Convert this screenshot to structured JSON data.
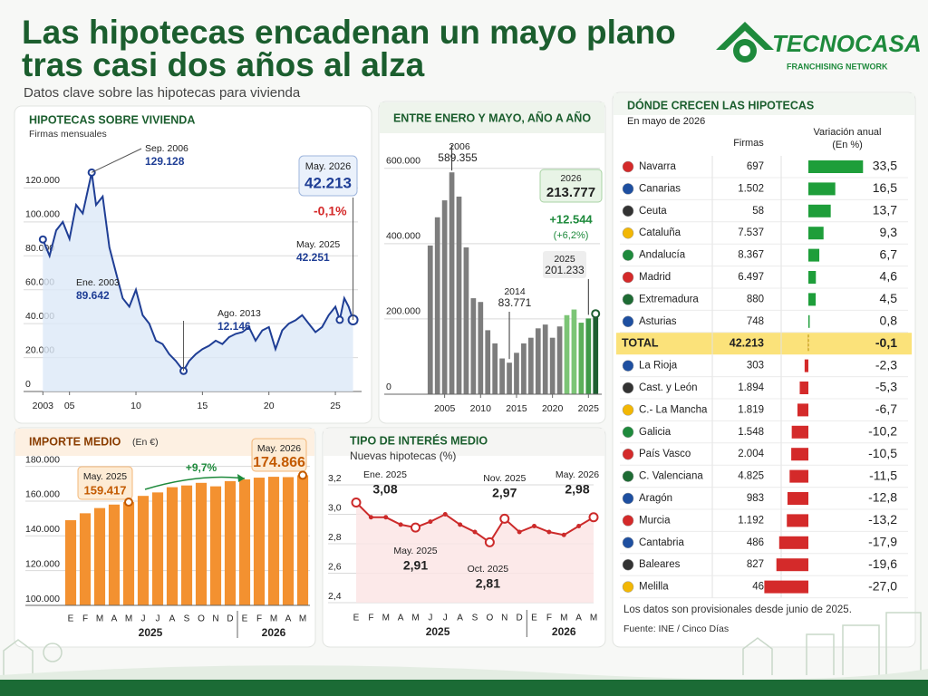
{
  "header": {
    "title": [
      "Las hipotecas encadenan un mayo plano",
      "tras casi dos años al alza"
    ],
    "subtitle": "Datos clave sobre las hipotecas para vivienda",
    "logo": "TECNOCASA",
    "logo_tagline": "FRANCHISING NETWORK"
  },
  "chart_data": [
    {
      "type": "line",
      "title": "HIPOTECAS SOBRE VIVIENDA",
      "subtitle": "Firmas mensuales",
      "color": "#1f3e95",
      "x": [
        2003.0,
        2003.5,
        2004.0,
        2004.5,
        2005.0,
        2005.5,
        2006.0,
        2006.67,
        2007.0,
        2007.5,
        2008.0,
        2008.5,
        2009.0,
        2009.5,
        2010.0,
        2010.5,
        2011.0,
        2011.5,
        2012.0,
        2012.5,
        2013.0,
        2013.58,
        2014.0,
        2014.5,
        2015.0,
        2015.5,
        2016.0,
        2016.5,
        2017.0,
        2017.5,
        2018.0,
        2018.5,
        2019.0,
        2019.5,
        2020.0,
        2020.5,
        2021.0,
        2021.5,
        2022.0,
        2022.5,
        2023.0,
        2023.5,
        2024.0,
        2024.5,
        2025.0,
        2025.33,
        2025.67,
        2026.0,
        2026.33
      ],
      "values": [
        89642,
        80000,
        95000,
        100000,
        90000,
        110000,
        105000,
        129128,
        110000,
        115000,
        85000,
        70000,
        55000,
        50000,
        60000,
        45000,
        40000,
        30000,
        28000,
        22000,
        18000,
        12146,
        18000,
        22000,
        25000,
        27000,
        30000,
        28000,
        32000,
        34000,
        35000,
        38000,
        30000,
        36000,
        38000,
        25000,
        36000,
        40000,
        42000,
        45000,
        40000,
        35000,
        38000,
        45000,
        50000,
        42251,
        55000,
        50000,
        42213
      ],
      "xlim": [
        2002.5,
        2026.7
      ],
      "ylim": [
        0,
        140000
      ],
      "xticks": [
        2003,
        {
          "value": 2005,
          "label": "05"
        },
        {
          "value": 2010,
          "label": "10"
        },
        {
          "value": 2015,
          "label": "15"
        },
        {
          "value": 2020,
          "label": "20"
        },
        {
          "value": 2025,
          "label": "25"
        }
      ],
      "yticks": [
        0,
        {
          "value": 20000,
          "label": "20.000"
        },
        {
          "value": 40000,
          "label": "40.000"
        },
        {
          "value": 60000,
          "label": "60.000"
        },
        {
          "value": 80000,
          "label": "80.000"
        },
        {
          "value": 100000,
          "label": "100.000"
        },
        {
          "value": 120000,
          "label": "120.000"
        }
      ],
      "grid": true,
      "annotations": [
        {
          "date": "Ene. 2003",
          "x": 2003.0,
          "value": 89642,
          "value_label": "89.642"
        },
        {
          "date": "Sep. 2006",
          "x": 2006.67,
          "value": 129128,
          "value_label": "129.128"
        },
        {
          "date": "Ago. 2013",
          "x": 2013.58,
          "value": 12146,
          "value_label": "12.146"
        },
        {
          "date": "May. 2025",
          "x": 2025.33,
          "value": 42251,
          "value_label": "42.251"
        },
        {
          "date": "May. 2026",
          "x": 2026.33,
          "value": 42213,
          "value_label": "42.213"
        }
      ],
      "note": "-0,1%"
    },
    {
      "type": "bar",
      "title": "ENTRE ENERO Y MAYO, AÑO A AÑO",
      "x": [
        2003,
        2004,
        2005,
        2006,
        2007,
        2008,
        2009,
        2010,
        2011,
        2012,
        2013,
        2014,
        2015,
        2016,
        2017,
        2018,
        2019,
        2020,
        2021,
        2022,
        2023,
        2024,
        2025,
        2026
      ],
      "values": [
        395000,
        470000,
        515000,
        589355,
        525000,
        390000,
        255000,
        245000,
        170000,
        135000,
        95000,
        83771,
        110000,
        135000,
        150000,
        175000,
        185000,
        150000,
        180000,
        210000,
        225000,
        190000,
        201233,
        213777
      ],
      "colors": [
        "#7d7d7d",
        "#7d7d7d",
        "#7d7d7d",
        "#7d7d7d",
        "#7d7d7d",
        "#7d7d7d",
        "#7d7d7d",
        "#7d7d7d",
        "#7d7d7d",
        "#7d7d7d",
        "#7d7d7d",
        "#7d7d7d",
        "#7d7d7d",
        "#7d7d7d",
        "#7d7d7d",
        "#7d7d7d",
        "#7d7d7d",
        "#7d7d7d",
        "#7d7d7d",
        "#7cc576",
        "#7cc576",
        "#5cb05a",
        "#3f9a48",
        "#1e5e31"
      ],
      "xlim": [
        2002.4,
        2026.6
      ],
      "ylim": [
        0,
        650000
      ],
      "xticks": [
        2005,
        2010,
        2015,
        2020,
        2025
      ],
      "yticks": [
        0,
        {
          "value": 200000,
          "label": "200.000"
        },
        {
          "value": 400000,
          "label": "400.000"
        },
        {
          "value": 600000,
          "label": "600.000"
        }
      ],
      "annotations": [
        {
          "x": 2006,
          "value_label": "589.355"
        },
        {
          "x": 2014,
          "value_label": "83.771"
        },
        {
          "x": 2025,
          "value_label": "201.233"
        },
        {
          "x": 2026,
          "value_label": "213.777",
          "change_label": "+12.544",
          "change_pct_label": "(+6,2%)"
        }
      ]
    },
    {
      "type": "bar",
      "title": "IMPORTE MEDIO",
      "subtitle": "(En €)",
      "color": "#f39130",
      "categories": [
        "E",
        "F",
        "M",
        "A",
        "M",
        "J",
        "J",
        "A",
        "S",
        "O",
        "N",
        "D",
        "E",
        "F",
        "M",
        "A",
        "M"
      ],
      "values": [
        149000,
        153000,
        156000,
        158000,
        159417,
        163000,
        165000,
        168000,
        169000,
        170500,
        168500,
        171500,
        172500,
        173500,
        174000,
        173800,
        174866
      ],
      "ylim": [
        100000,
        185000
      ],
      "yticks": [
        {
          "value": 100000,
          "label": "100.000"
        },
        {
          "value": 120000,
          "label": "120.000"
        },
        {
          "value": 140000,
          "label": "140.000"
        },
        {
          "value": 160000,
          "label": "160.000"
        },
        {
          "value": 180000,
          "label": "180.000"
        }
      ],
      "year_labels": [
        "2025",
        "2026"
      ],
      "annotations": [
        {
          "date": "May. 2025",
          "value_label": "159.417"
        },
        {
          "date": "May. 2026",
          "value_label": "174.866"
        }
      ],
      "change_label": "+9,7%"
    },
    {
      "type": "line",
      "title": "TIPO DE INTERÉS MEDIO",
      "subtitle": "Nuevas hipotecas (%)",
      "color": "#cc2a2a",
      "categories": [
        "E",
        "F",
        "M",
        "A",
        "M",
        "J",
        "J",
        "A",
        "S",
        "O",
        "N",
        "D",
        "E",
        "F",
        "M",
        "A",
        "M"
      ],
      "values": [
        3.08,
        2.98,
        2.98,
        2.93,
        2.91,
        2.95,
        3.0,
        2.93,
        2.88,
        2.81,
        2.97,
        2.88,
        2.92,
        2.88,
        2.86,
        2.92,
        2.98
      ],
      "ylim": [
        2.4,
        3.2
      ],
      "yticks": [
        {
          "value": 2.4,
          "label": "2,4"
        },
        {
          "value": 2.6,
          "label": "2,6"
        },
        {
          "value": 2.8,
          "label": "2,8"
        },
        {
          "value": 3.0,
          "label": "3,0"
        },
        {
          "value": 3.2,
          "label": "3,2"
        }
      ],
      "year_labels": [
        "2025",
        "2026"
      ],
      "annotations": [
        {
          "date": "Ene. 2025",
          "value_label": "3,08"
        },
        {
          "date": "May. 2025",
          "value_label": "2,91"
        },
        {
          "date": "Oct. 2025",
          "value_label": "2,81"
        },
        {
          "date": "Nov. 2025",
          "value_label": "2,97"
        },
        {
          "date": "May. 2026",
          "value_label": "2,98"
        }
      ]
    }
  ],
  "table": {
    "title": "DÓNDE CRECEN LAS HIPOTECAS",
    "subtitle": "En mayo de 2026",
    "columns": [
      "Firmas",
      "Variación anual",
      "(En %)"
    ],
    "colors": {
      "positive": "#1e9e3a",
      "negative": "#d42a2a",
      "total": "#fbe27a"
    },
    "rows_up": [
      {
        "region": "Navarra",
        "firmas": "697",
        "variacion": 33.5,
        "variacion_label": "33,5"
      },
      {
        "region": "Canarias",
        "firmas": "1.502",
        "variacion": 16.5,
        "variacion_label": "16,5"
      },
      {
        "region": "Ceuta",
        "firmas": "58",
        "variacion": 13.7,
        "variacion_label": "13,7"
      },
      {
        "region": "Cataluña",
        "firmas": "7.537",
        "variacion": 9.3,
        "variacion_label": "9,3"
      },
      {
        "region": "Andalucía",
        "firmas": "8.367",
        "variacion": 6.7,
        "variacion_label": "6,7"
      },
      {
        "region": "Madrid",
        "firmas": "6.497",
        "variacion": 4.6,
        "variacion_label": "4,6"
      },
      {
        "region": "Extremadura",
        "firmas": "880",
        "variacion": 4.5,
        "variacion_label": "4,5"
      },
      {
        "region": "Asturias",
        "firmas": "748",
        "variacion": 0.8,
        "variacion_label": "0,8"
      }
    ],
    "total": {
      "region": "TOTAL",
      "firmas": "42.213",
      "variacion": -0.1,
      "variacion_label": "-0,1"
    },
    "rows_down": [
      {
        "region": "La Rioja",
        "firmas": "303",
        "variacion": -2.3,
        "variacion_label": "-2,3"
      },
      {
        "region": "Cast. y León",
        "firmas": "1.894",
        "variacion": -5.3,
        "variacion_label": "-5,3"
      },
      {
        "region": "C.- La Mancha",
        "firmas": "1.819",
        "variacion": -6.7,
        "variacion_label": "-6,7"
      },
      {
        "region": "Galicia",
        "firmas": "1.548",
        "variacion": -10.2,
        "variacion_label": "-10,2"
      },
      {
        "region": "País Vasco",
        "firmas": "2.004",
        "variacion": -10.5,
        "variacion_label": "-10,5"
      },
      {
        "region": "C. Valenciana",
        "firmas": "4.825",
        "variacion": -11.5,
        "variacion_label": "-11,5"
      },
      {
        "region": "Aragón",
        "firmas": "983",
        "variacion": -12.8,
        "variacion_label": "-12,8"
      },
      {
        "region": "Murcia",
        "firmas": "1.192",
        "variacion": -13.2,
        "variacion_label": "-13,2"
      },
      {
        "region": "Cantabria",
        "firmas": "486",
        "variacion": -17.9,
        "variacion_label": "-17,9"
      },
      {
        "region": "Baleares",
        "firmas": "827",
        "variacion": -19.6,
        "variacion_label": "-19,6"
      },
      {
        "region": "Melilla",
        "firmas": "46",
        "variacion": -27.0,
        "variacion_label": "-27,0"
      }
    ]
  },
  "footer": {
    "note": "Los datos son provisionales desde junio de 2025.",
    "source": "Fuente: INE / Cinco Días"
  }
}
